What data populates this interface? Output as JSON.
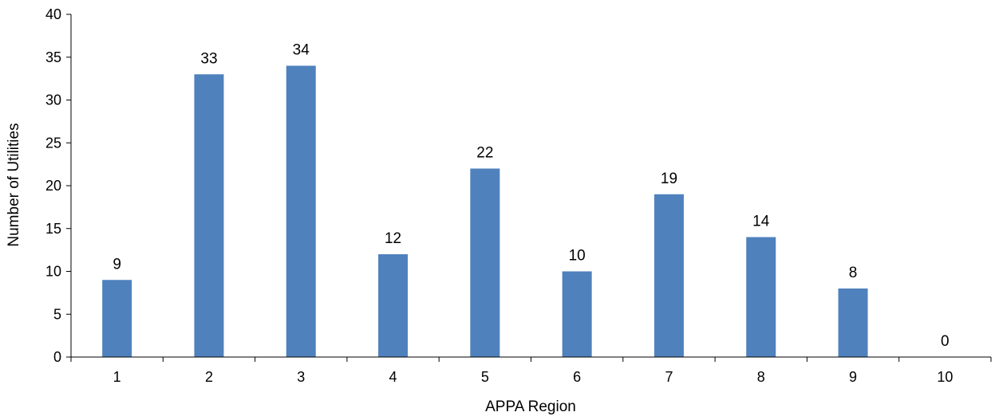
{
  "chart_data": {
    "type": "bar",
    "title": "",
    "xlabel": "APPA Region",
    "ylabel": "Number of Utilities",
    "categories": [
      "1",
      "2",
      "3",
      "4",
      "5",
      "6",
      "7",
      "8",
      "9",
      "10"
    ],
    "values": [
      9,
      33,
      34,
      12,
      22,
      10,
      19,
      14,
      8,
      0
    ],
    "data_labels": [
      "9",
      "33",
      "34",
      "12",
      "22",
      "10",
      "19",
      "14",
      "8",
      "0"
    ],
    "ylim": [
      0,
      40
    ],
    "yticks": [
      0,
      5,
      10,
      15,
      20,
      25,
      30,
      35,
      40
    ],
    "grid": false,
    "legend": "none",
    "bar_color": "#4f81bd",
    "axis_color": "#000000"
  }
}
